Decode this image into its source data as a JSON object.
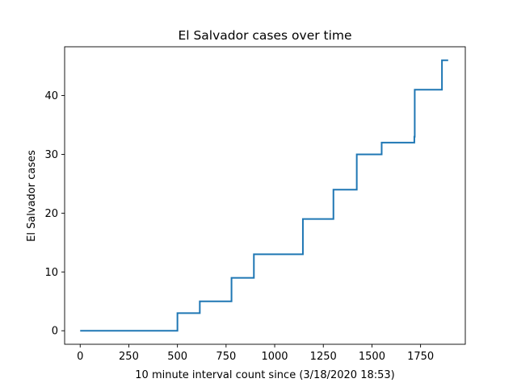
{
  "chart_data": {
    "type": "line",
    "title": "El Salvador cases over time",
    "xlabel": "10 minute interval count since (3/18/2020 18:53)",
    "ylabel": "El Salvador cases",
    "xlim": [
      -80,
      1980
    ],
    "ylim": [
      -2.3,
      48.3
    ],
    "xticks": [
      0,
      250,
      500,
      750,
      1000,
      1250,
      1500,
      1750
    ],
    "yticks": [
      0,
      10,
      20,
      30,
      40
    ],
    "grid": false,
    "legend": "none",
    "step": "post",
    "series": [
      {
        "color": "#1f77b4",
        "x": [
          0,
          500,
          615,
          778,
          893,
          1145,
          1302,
          1422,
          1550,
          1718,
          1720,
          1860,
          1892
        ],
        "y": [
          0,
          3,
          5,
          9,
          13,
          19,
          24,
          30,
          32,
          33,
          41,
          46,
          46
        ]
      }
    ]
  }
}
